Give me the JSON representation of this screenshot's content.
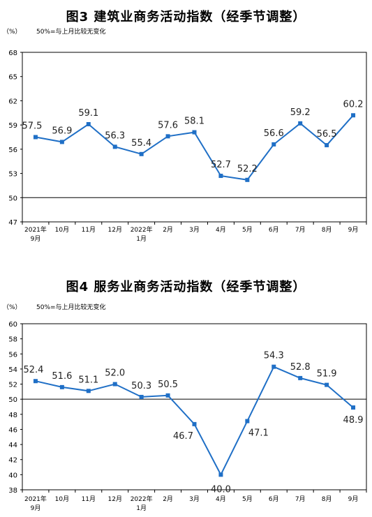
{
  "charts": [
    {
      "title": "图3  建筑业商务活动指数（经季节调整）",
      "unit": "（%）",
      "note": "50%=与上月比较无变化",
      "colors": {
        "line": "#1f6fc6",
        "axis": "#000000"
      },
      "chart_data": {
        "type": "line",
        "categories": [
          "2021年\n9月",
          "10月",
          "11月",
          "12月",
          "2022年\n1月",
          "2月",
          "3月",
          "4月",
          "5月",
          "6月",
          "7月",
          "8月",
          "9月"
        ],
        "series": [
          {
            "values": [
              57.5,
              56.9,
              59.1,
              56.3,
              55.4,
              57.6,
              58.1,
              52.7,
              52.2,
              56.6,
              59.2,
              56.5,
              60.2
            ]
          }
        ],
        "data_labels": [
          "57.5",
          "56.9",
          "59.1",
          "56.3",
          "55.4",
          "57.6",
          "58.1",
          "52.7",
          "52.2",
          "56.6",
          "59.2",
          "56.5",
          "60.2"
        ],
        "yticks": [
          47,
          50,
          53,
          56,
          59,
          62,
          65,
          68
        ],
        "ylim": [
          47,
          68
        ],
        "reference_line": 50
      }
    },
    {
      "title": "图4  服务业商务活动指数（经季节调整）",
      "unit": "（%）",
      "note": "50%=与上月比较无变化",
      "colors": {
        "line": "#1f6fc6",
        "axis": "#000000"
      },
      "chart_data": {
        "type": "line",
        "categories": [
          "2021年\n9月",
          "10月",
          "11月",
          "12月",
          "2022年\n1月",
          "2月",
          "3月",
          "4月",
          "5月",
          "6月",
          "7月",
          "8月",
          "9月"
        ],
        "series": [
          {
            "values": [
              52.4,
              51.6,
              51.1,
              52.0,
              50.3,
              50.5,
              46.7,
              40.0,
              47.1,
              54.3,
              52.8,
              51.9,
              48.9
            ]
          }
        ],
        "data_labels": [
          "52.4",
          "51.6",
          "51.1",
          "52.0",
          "50.3",
          "50.5",
          "46.7",
          "40.0",
          "47.1",
          "54.3",
          "52.8",
          "51.9",
          "48.9"
        ],
        "yticks": [
          38,
          40,
          42,
          44,
          46,
          48,
          50,
          52,
          54,
          56,
          58,
          60
        ],
        "ylim": [
          38,
          60
        ],
        "reference_line": 50
      }
    }
  ]
}
